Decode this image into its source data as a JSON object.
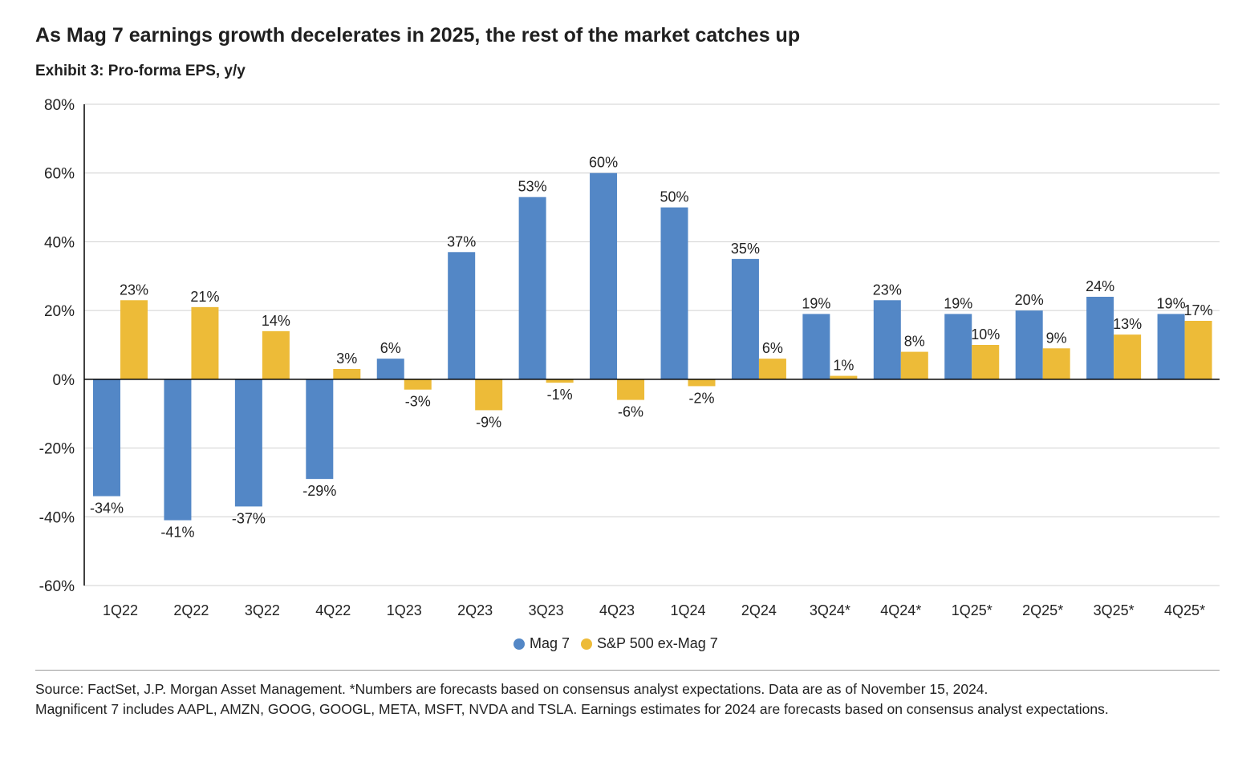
{
  "title": "As Mag 7 earnings growth decelerates in 2025, the rest of the market catches up",
  "subtitle": "Exhibit 3: Pro-forma EPS, y/y",
  "colors": {
    "mag7": "#5387C6",
    "sp500_ex": "#EDBB38",
    "axis": "#000000",
    "grid": "#d0d0d0",
    "text": "#222222"
  },
  "chart_data": {
    "type": "bar",
    "categories": [
      "1Q22",
      "2Q22",
      "3Q22",
      "4Q22",
      "1Q23",
      "2Q23",
      "3Q23",
      "4Q23",
      "1Q24",
      "2Q24",
      "3Q24*",
      "4Q24*",
      "1Q25*",
      "2Q25*",
      "3Q25*",
      "4Q25*"
    ],
    "series": [
      {
        "name": "Mag 7",
        "values": [
          -34,
          -41,
          -37,
          -29,
          6,
          37,
          53,
          60,
          50,
          35,
          19,
          23,
          19,
          20,
          24,
          19
        ],
        "labels": [
          "-34%",
          "-41%",
          "-37%",
          "-29%",
          "6%",
          "37%",
          "53%",
          "60%",
          "50%",
          "35%",
          "19%",
          "23%",
          "19%",
          "20%",
          "24%",
          "19%"
        ]
      },
      {
        "name": "S&P 500 ex-Mag 7",
        "values": [
          23,
          21,
          14,
          3,
          -3,
          -9,
          -1,
          -6,
          -2,
          6,
          1,
          8,
          10,
          9,
          13,
          17
        ],
        "labels": [
          "23%",
          "21%",
          "14%",
          "3%",
          "-3%",
          "-9%",
          "-1%",
          "-6%",
          "-2%",
          "6%",
          "1%",
          "8%",
          "10%",
          "9%",
          "13%",
          "17%"
        ]
      }
    ],
    "ylim": [
      -60,
      80
    ],
    "yticks": [
      80,
      60,
      40,
      20,
      0,
      -20,
      -40,
      -60
    ],
    "ytick_labels": [
      "80%",
      "60%",
      "40%",
      "20%",
      "0%",
      "-20%",
      "-40%",
      "-60%"
    ],
    "grid": true,
    "legend_position": "bottom-center"
  },
  "legend": {
    "mag7_label": "Mag 7",
    "sp500_label": "S&P 500 ex-Mag 7"
  },
  "source": {
    "line1": "Source: FactSet, J.P. Morgan Asset Management. *Numbers are forecasts based on consensus analyst expectations. Data are as of November 15, 2024.",
    "line2": "Magnificent 7 includes AAPL, AMZN, GOOG, GOOGL, META, MSFT, NVDA and TSLA. Earnings estimates for 2024 are forecasts based on consensus analyst expectations."
  }
}
